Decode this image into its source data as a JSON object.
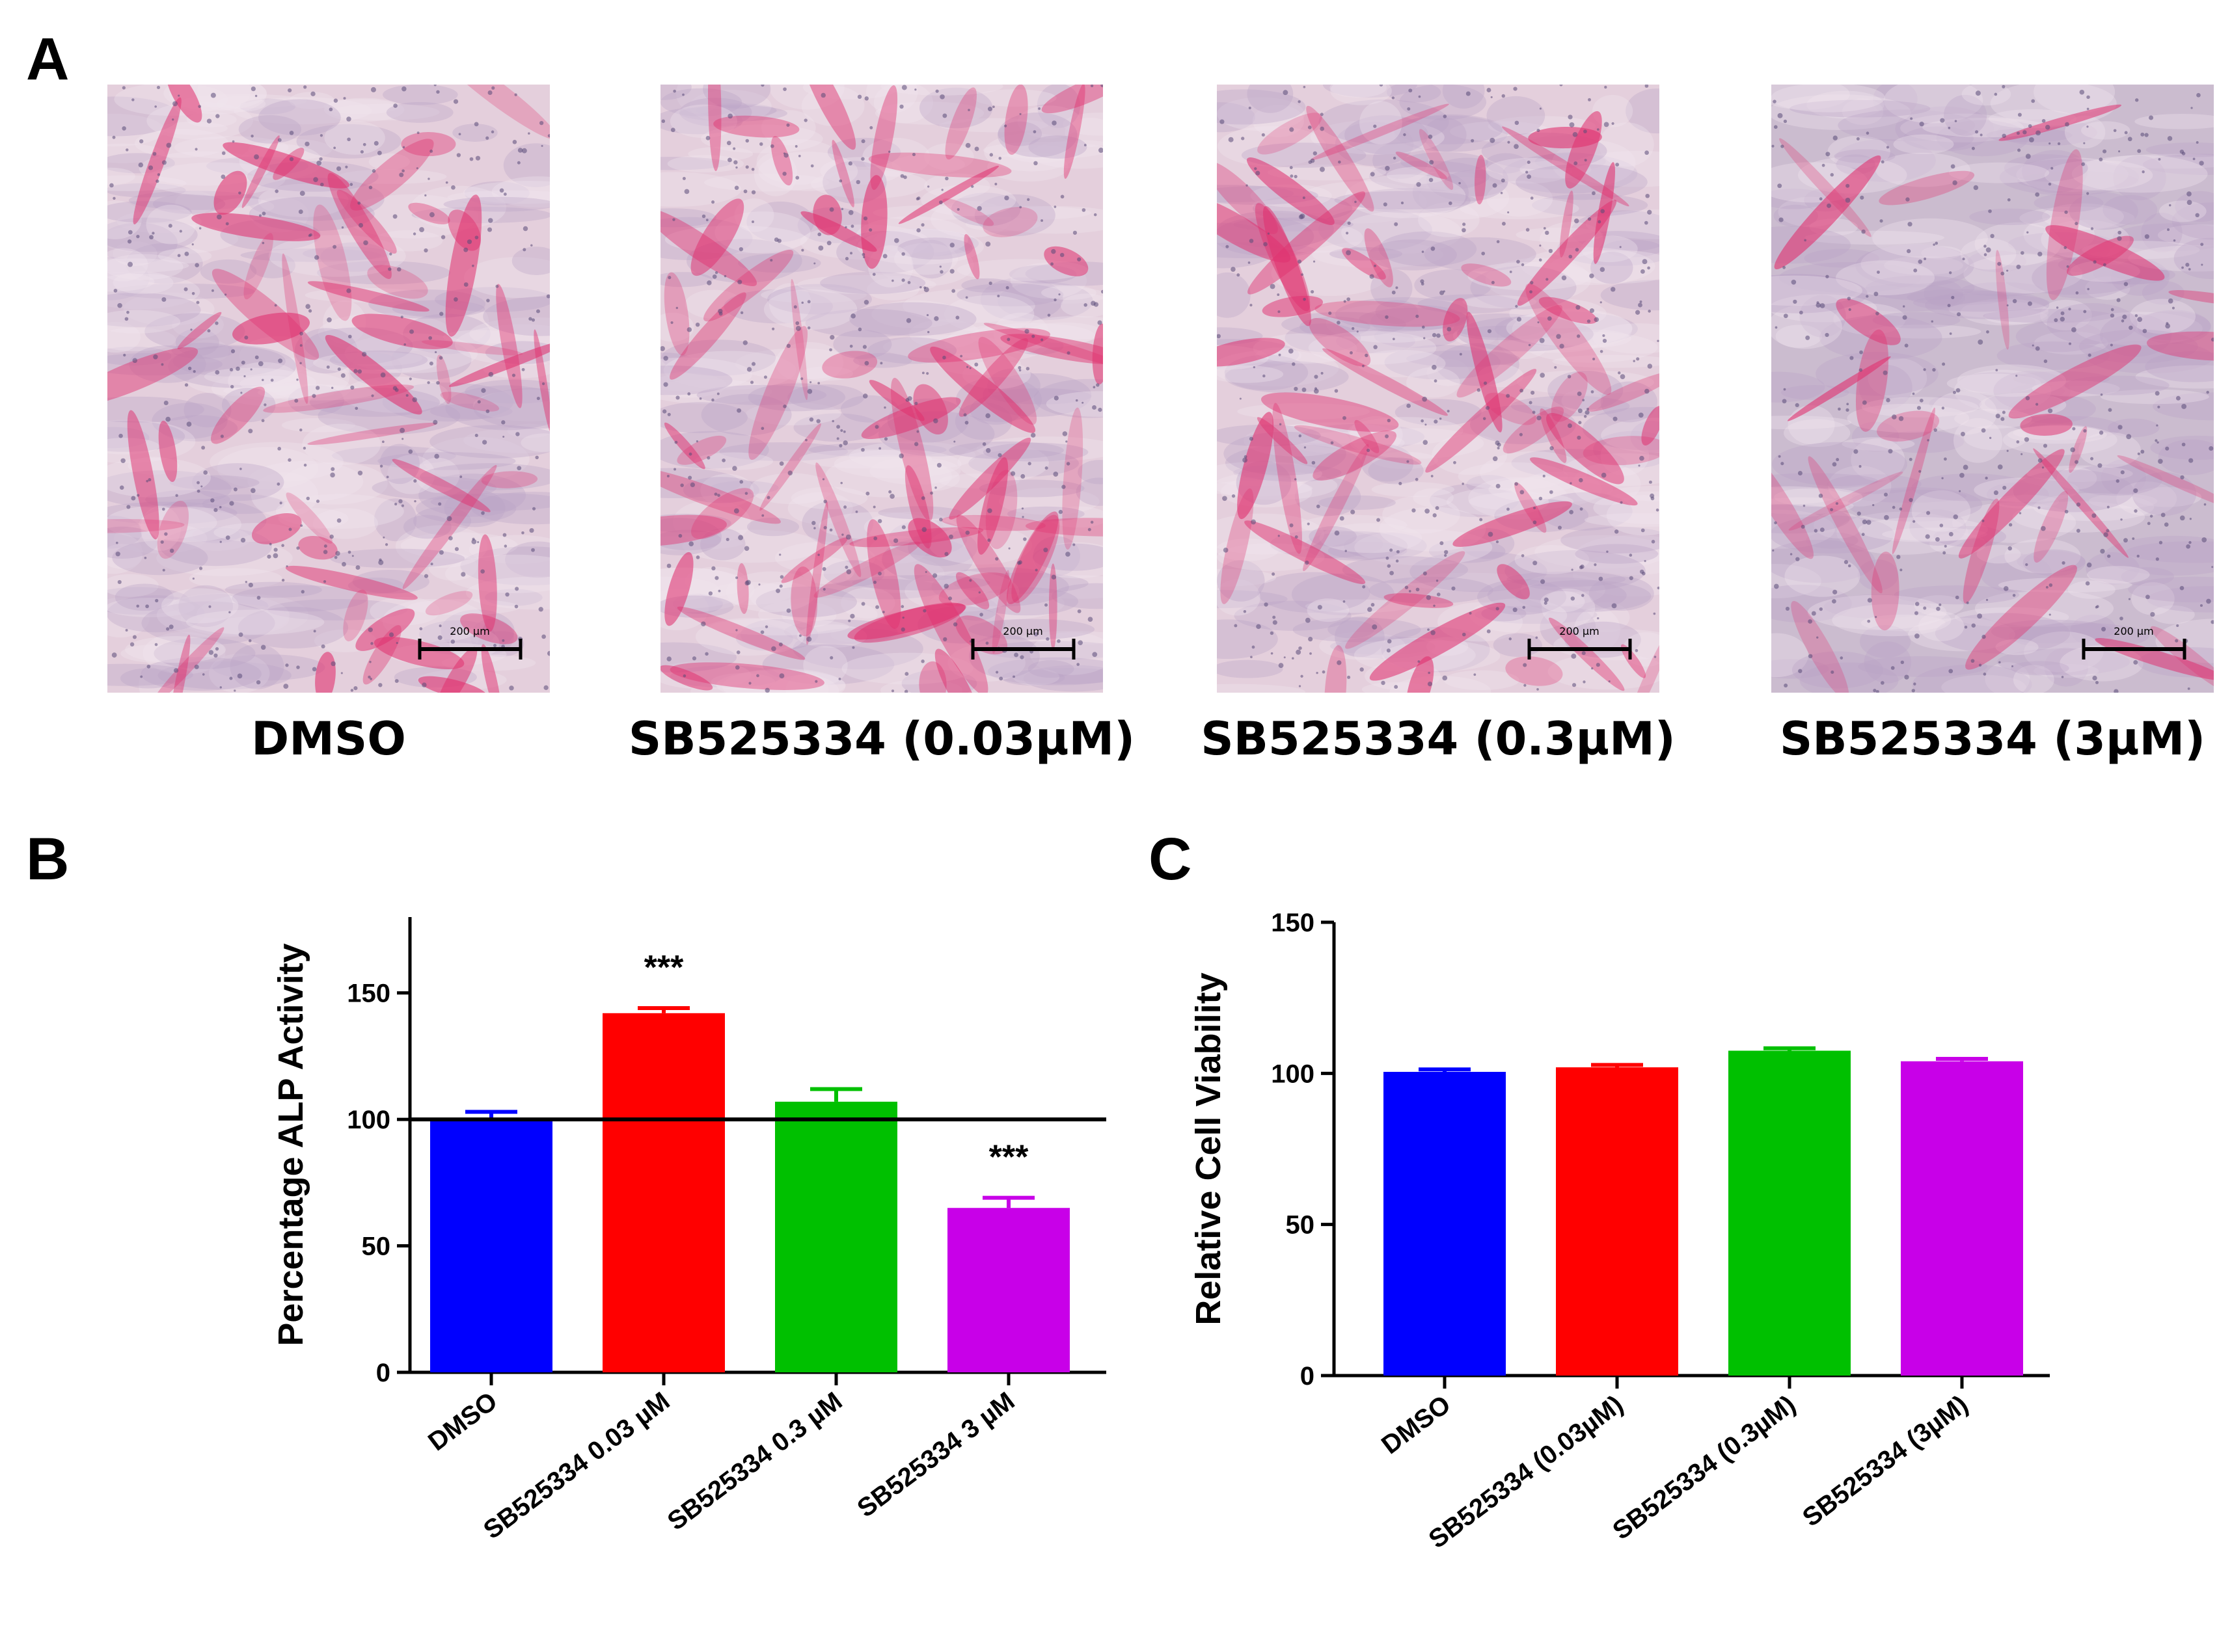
{
  "panels": {
    "a": {
      "letter": "A"
    },
    "b": {
      "letter": "B"
    },
    "c": {
      "letter": "C"
    }
  },
  "micrographs": [
    {
      "label": "DMSO",
      "scale_bar": "200 µm",
      "stain_intensity": 0.65
    },
    {
      "label": "SB525334 (0.03µM)",
      "scale_bar": "200 µm",
      "stain_intensity": 0.85
    },
    {
      "label": "SB525334 (0.3µM)",
      "scale_bar": "200 µm",
      "stain_intensity": 0.7
    },
    {
      "label": "SB525334 (3µM)",
      "scale_bar": "200 µm",
      "stain_intensity": 0.35
    }
  ],
  "chart_data": [
    {
      "type": "bar",
      "panel": "B",
      "ylabel": "Percentage ALP Activity",
      "xlabel": "",
      "ylim": [
        0,
        180
      ],
      "yticks": [
        0,
        50,
        100,
        150
      ],
      "reference_line": 100,
      "categories": [
        "DMSO",
        "SB525334  0.03 µM",
        "SB525334  0.3 µM",
        "SB525334 3 µM"
      ],
      "values": [
        100,
        142,
        107,
        65
      ],
      "errors": [
        3,
        2,
        5,
        4
      ],
      "significance": [
        "",
        "***",
        "",
        "***"
      ],
      "colors": [
        "#0000ff",
        "#ff0000",
        "#00c000",
        "#c800e8"
      ]
    },
    {
      "type": "bar",
      "panel": "C",
      "ylabel": "Relative Cell Viability",
      "xlabel": "",
      "ylim": [
        0,
        150
      ],
      "yticks": [
        0,
        50,
        100,
        150
      ],
      "categories": [
        "DMSO",
        "SB525334 (0.03µM)",
        "SB525334 (0.3µM)",
        "SB525334 (3µM)"
      ],
      "values": [
        100.5,
        102,
        107.5,
        104
      ],
      "errors": [
        0.8,
        0.8,
        0.8,
        0.8
      ],
      "colors": [
        "#0000ff",
        "#ff0000",
        "#00c000",
        "#c800e8"
      ]
    }
  ]
}
